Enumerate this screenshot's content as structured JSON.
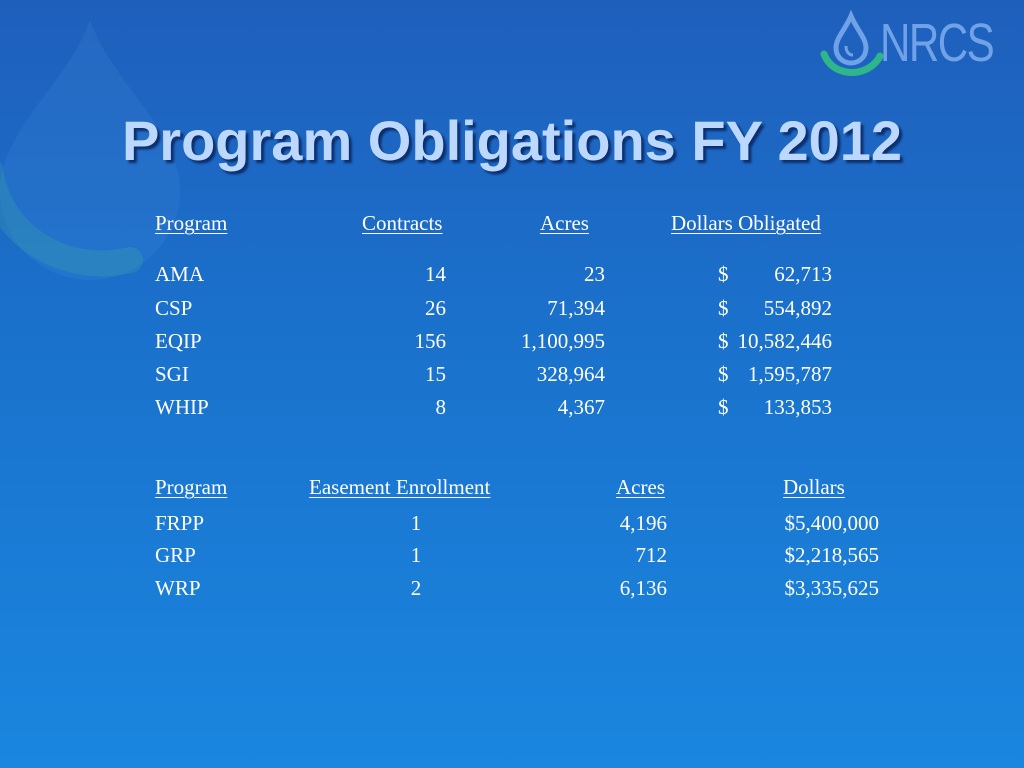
{
  "title": "Program Obligations FY 2012",
  "logo": {
    "text": "NRCS",
    "icon": "water-drop-icon"
  },
  "table1": {
    "headers": [
      "Program ",
      "Contracts",
      "Acres",
      "Dollars Obligated"
    ],
    "rows": [
      {
        "program": "AMA",
        "contracts": "14",
        "acres": "23",
        "dollar_sign": "$",
        "amount": "62,713"
      },
      {
        "program": "CSP",
        "contracts": "26",
        "acres": "71,394",
        "dollar_sign": "$",
        "amount": "554,892"
      },
      {
        "program": "EQIP",
        "contracts": "156",
        "acres": "1,100,995",
        "dollar_sign": "$",
        "amount": "10,582,446"
      },
      {
        "program": "SGI",
        "contracts": "15",
        "acres": "328,964",
        "dollar_sign": "$",
        "amount": "1,595,787"
      },
      {
        "program": "WHIP",
        "contracts": "8",
        "acres": "4,367",
        "dollar_sign": "$",
        "amount": "133,853"
      }
    ]
  },
  "table2": {
    "headers": [
      "Program",
      "Easement Enrollment",
      "Acres",
      "Dollars"
    ],
    "rows": [
      {
        "program": "FRPP",
        "enrollment": "1",
        "acres": "4,196",
        "dollars": "$5,400,000"
      },
      {
        "program": "GRP",
        "enrollment": "1",
        "acres": "712",
        "dollars": "$2,218,565"
      },
      {
        "program": "WRP",
        "enrollment": "2",
        "acres": "6,136",
        "dollars": "$3,335,625"
      }
    ]
  },
  "colors": {
    "title": "#bcd8ff",
    "logo_text": "#6fa2e6",
    "logo_green": "#2fb58a"
  }
}
